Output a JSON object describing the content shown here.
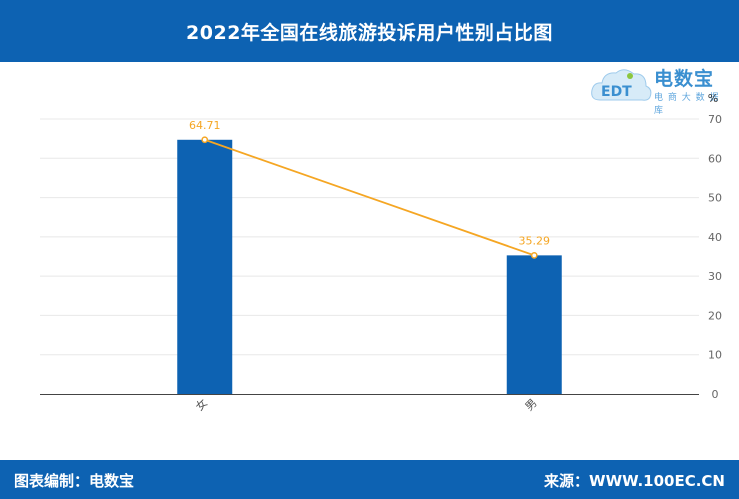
{
  "header": {
    "title": "2022年全国在线旅游投诉用户性别占比图"
  },
  "logo": {
    "name": "电数宝",
    "sub": "电 商 大 数 据 库",
    "mark": "EDT"
  },
  "footer": {
    "left": "图表编制：电数宝",
    "right": "来源：WWW.100EC.CN"
  },
  "colors": {
    "header": "#0d62b2",
    "bar": "#0d62b2",
    "line": "#f5a623",
    "grid": "#e8e8e8"
  },
  "chart_data": {
    "type": "bar",
    "categories": [
      "女",
      "男"
    ],
    "series": [
      {
        "type": "bar",
        "values": [
          64.71,
          35.29
        ]
      },
      {
        "type": "line",
        "values": [
          64.71,
          35.29
        ]
      }
    ],
    "data_labels": [
      "64.71",
      "35.29"
    ],
    "ylabel": "%",
    "ylim": [
      0,
      70
    ],
    "yticks": [
      0,
      10,
      20,
      30,
      40,
      50,
      60,
      70
    ],
    "y_axis_position": "right",
    "grid": true
  }
}
